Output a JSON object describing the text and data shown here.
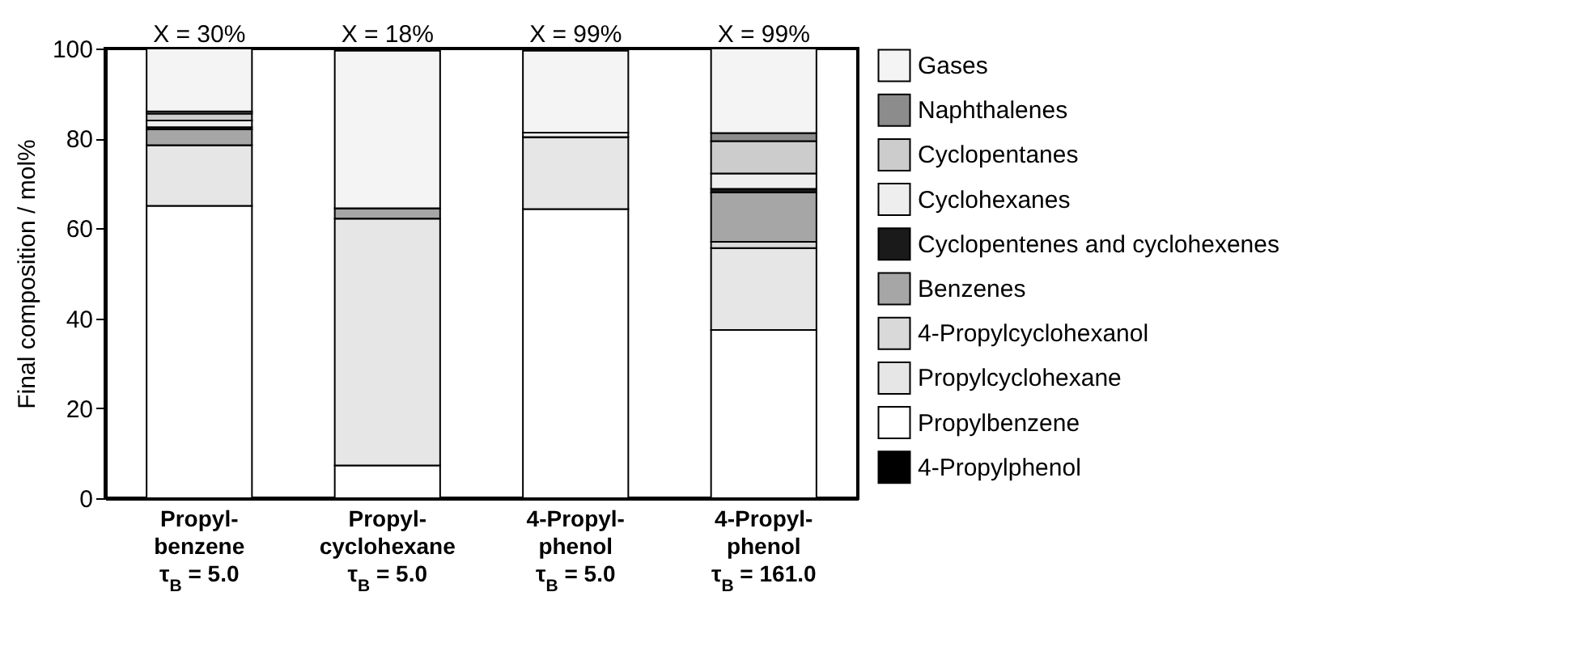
{
  "chart_data": {
    "type": "bar",
    "stacked": true,
    "ylabel": "Final composition / mol%",
    "categories": [
      "Propyl-\nbenzene\nτ$_{B}$ = 5.0",
      "Propyl-\ncyclohexane\nτ$_{B}$ = 5.0",
      "4-Propyl-\nphenol\nτ$_{B}$ = 5.0",
      "4-Propyl-\nphenol\nτ$_{B}$ = 161.0"
    ],
    "series": [
      {
        "name": "4-Propylphenol",
        "color": "#000000",
        "values": [
          0,
          0,
          null,
          0
        ]
      },
      {
        "name": "Propylbenzene",
        "color": "#ffffff",
        "values": [
          65,
          7.3,
          64.3,
          37.4
        ]
      },
      {
        "name": "Propylcyclohexane",
        "color": "#e6e6e6",
        "values": [
          13.5,
          54.9,
          16,
          18.2
        ]
      },
      {
        "name": "4-Propylcyclohexanol",
        "color": "#d9d9d9",
        "values": [
          0,
          0,
          0,
          1.4
        ]
      },
      {
        "name": "Benzenes",
        "color": "#a6a6a6",
        "values": [
          3.5,
          2.3,
          0,
          11
        ]
      },
      {
        "name": "Cyclopentenes and cyclohexenes",
        "color": "#1a1a1a",
        "values": [
          0.5,
          0,
          0,
          0.8
        ]
      },
      {
        "name": "Cyclohexanes",
        "color": "#eeeeee",
        "values": [
          1.5,
          0,
          1,
          3.4
        ]
      },
      {
        "name": "Cyclopentanes",
        "color": "#cccccc",
        "values": [
          1.5,
          0,
          0,
          7.2
        ]
      },
      {
        "name": "Naphthalenes",
        "color": "#8c8c8c",
        "values": [
          0.5,
          null,
          0,
          1.8
        ]
      },
      {
        "name": "Gases",
        "color": "#f4f4f4",
        "values": [
          14,
          35,
          18.2,
          18.8
        ]
      }
    ],
    "ylim": [
      0,
      100
    ],
    "yticks": [
      0,
      20,
      40,
      60,
      80,
      100
    ],
    "legend": "right",
    "annotations": [
      {
        "text": "X = 30%",
        "x": "Propyl-\nbenzene\nτ$_{B}$ = 5.0",
        "y": 100
      },
      {
        "text": "X = 18%",
        "x": "Propyl-\ncyclohexane\nτ$_{B}$ = 5.0",
        "y": 100
      },
      {
        "text": "X = 99%",
        "x": "4-Propyl-\nphenol\nτ$_{B}$ = 5.0",
        "y": 100
      },
      {
        "text": "X = 99%",
        "x": "4-Propyl-\nphenol\nτ$_{B}$ = 161.0",
        "y": 100
      }
    ]
  }
}
